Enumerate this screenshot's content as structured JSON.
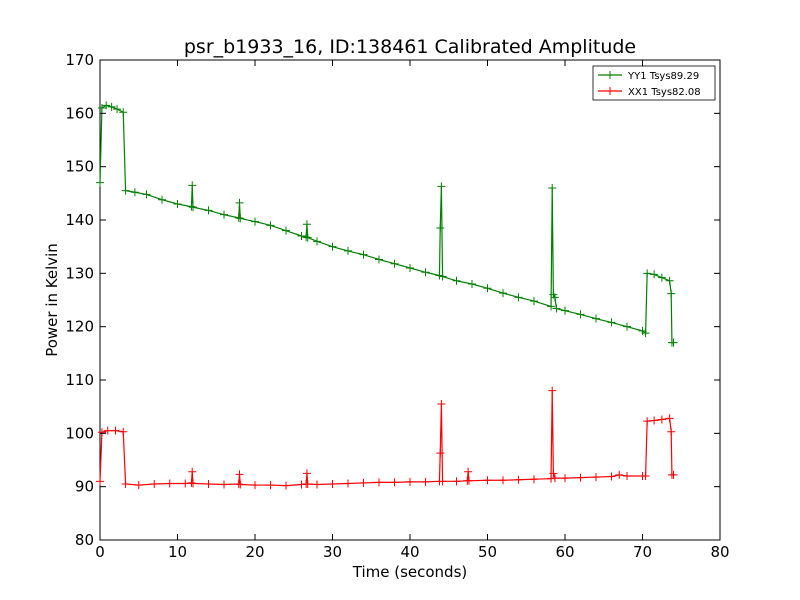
{
  "chart_data": {
    "type": "line",
    "title": "psr_b1933_16, ID:138461 Calibrated Amplitude",
    "xlabel": "Time (seconds)",
    "ylabel": "Power in Kelvin",
    "xlim": [
      0,
      80
    ],
    "ylim": [
      80,
      170
    ],
    "xticks": [
      0,
      10,
      20,
      30,
      40,
      50,
      60,
      70,
      80
    ],
    "yticks": [
      80,
      90,
      100,
      110,
      120,
      130,
      140,
      150,
      160,
      170
    ],
    "grid": false,
    "legend_position": "top-right",
    "series": [
      {
        "name": "YY1 Tsys89.29",
        "color": "#008000",
        "marker": "+",
        "points": [
          [
            0.0,
            147.0
          ],
          [
            0.25,
            161.0
          ],
          [
            0.8,
            161.5
          ],
          [
            1.5,
            161.2
          ],
          [
            2.2,
            160.8
          ],
          [
            3.0,
            160.2
          ],
          [
            3.3,
            145.5
          ],
          [
            4.5,
            145.2
          ],
          [
            6.0,
            144.8
          ],
          [
            8.0,
            143.8
          ],
          [
            10.0,
            143.0
          ],
          [
            11.8,
            142.5
          ],
          [
            11.9,
            146.5
          ],
          [
            12.0,
            142.4
          ],
          [
            14.0,
            141.8
          ],
          [
            16.0,
            141.0
          ],
          [
            17.9,
            140.4
          ],
          [
            18.0,
            143.2
          ],
          [
            18.1,
            140.3
          ],
          [
            20.0,
            139.7
          ],
          [
            22.0,
            139.0
          ],
          [
            24.0,
            138.0
          ],
          [
            26.0,
            137.0
          ],
          [
            26.6,
            136.8
          ],
          [
            26.7,
            139.2
          ],
          [
            26.8,
            136.7
          ],
          [
            28.0,
            136.0
          ],
          [
            30.0,
            135.0
          ],
          [
            32.0,
            134.2
          ],
          [
            34.0,
            133.5
          ],
          [
            36.0,
            132.6
          ],
          [
            38.0,
            131.8
          ],
          [
            40.0,
            131.0
          ],
          [
            42.0,
            130.2
          ],
          [
            43.8,
            129.6
          ],
          [
            43.9,
            138.5
          ],
          [
            44.05,
            146.3
          ],
          [
            44.2,
            129.4
          ],
          [
            46.0,
            128.6
          ],
          [
            48.0,
            128.0
          ],
          [
            50.0,
            127.2
          ],
          [
            52.0,
            126.3
          ],
          [
            54.0,
            125.5
          ],
          [
            56.0,
            124.8
          ],
          [
            58.2,
            123.8
          ],
          [
            58.35,
            146.0
          ],
          [
            58.5,
            126.0
          ],
          [
            58.7,
            125.5
          ],
          [
            58.9,
            123.4
          ],
          [
            60.0,
            123.0
          ],
          [
            62.0,
            122.3
          ],
          [
            64.0,
            121.5
          ],
          [
            66.0,
            120.8
          ],
          [
            68.0,
            120.0
          ],
          [
            70.0,
            119.2
          ],
          [
            70.4,
            118.8
          ],
          [
            70.6,
            130.0
          ],
          [
            71.5,
            129.8
          ],
          [
            72.5,
            129.2
          ],
          [
            73.5,
            128.6
          ],
          [
            73.7,
            126.2
          ],
          [
            73.8,
            117.0
          ],
          [
            74.0,
            117.0
          ]
        ]
      },
      {
        "name": "XX1 Tsys82.08",
        "color": "#ff0000",
        "marker": "+",
        "points": [
          [
            0.0,
            91.0
          ],
          [
            0.25,
            100.2
          ],
          [
            1.0,
            100.5
          ],
          [
            2.0,
            100.5
          ],
          [
            3.0,
            100.3
          ],
          [
            3.3,
            90.5
          ],
          [
            5.0,
            90.3
          ],
          [
            7.0,
            90.5
          ],
          [
            9.0,
            90.6
          ],
          [
            11.0,
            90.6
          ],
          [
            11.8,
            90.7
          ],
          [
            11.9,
            92.8
          ],
          [
            12.0,
            90.6
          ],
          [
            14.0,
            90.5
          ],
          [
            16.0,
            90.4
          ],
          [
            17.9,
            90.5
          ],
          [
            18.0,
            92.3
          ],
          [
            18.1,
            90.4
          ],
          [
            20.0,
            90.3
          ],
          [
            22.0,
            90.3
          ],
          [
            24.0,
            90.2
          ],
          [
            26.0,
            90.4
          ],
          [
            26.6,
            90.5
          ],
          [
            26.7,
            92.5
          ],
          [
            26.8,
            90.5
          ],
          [
            28.0,
            90.4
          ],
          [
            30.0,
            90.5
          ],
          [
            32.0,
            90.6
          ],
          [
            34.0,
            90.7
          ],
          [
            36.0,
            90.8
          ],
          [
            38.0,
            90.8
          ],
          [
            40.0,
            90.9
          ],
          [
            42.0,
            90.9
          ],
          [
            43.8,
            91.0
          ],
          [
            43.9,
            96.3
          ],
          [
            44.05,
            105.5
          ],
          [
            44.2,
            91.0
          ],
          [
            46.0,
            91.0
          ],
          [
            47.4,
            91.1
          ],
          [
            47.5,
            92.8
          ],
          [
            47.6,
            91.1
          ],
          [
            50.0,
            91.2
          ],
          [
            52.0,
            91.2
          ],
          [
            54.0,
            91.3
          ],
          [
            56.0,
            91.4
          ],
          [
            58.2,
            91.5
          ],
          [
            58.35,
            108.0
          ],
          [
            58.5,
            92.5
          ],
          [
            58.7,
            91.6
          ],
          [
            60.0,
            91.6
          ],
          [
            62.0,
            91.7
          ],
          [
            64.0,
            91.8
          ],
          [
            66.0,
            91.9
          ],
          [
            67.0,
            92.2
          ],
          [
            68.0,
            92.0
          ],
          [
            70.0,
            92.0
          ],
          [
            70.4,
            92.0
          ],
          [
            70.6,
            102.3
          ],
          [
            71.5,
            102.4
          ],
          [
            72.5,
            102.6
          ],
          [
            73.5,
            102.8
          ],
          [
            73.7,
            100.3
          ],
          [
            73.8,
            92.2
          ],
          [
            74.0,
            92.2
          ]
        ]
      }
    ]
  }
}
